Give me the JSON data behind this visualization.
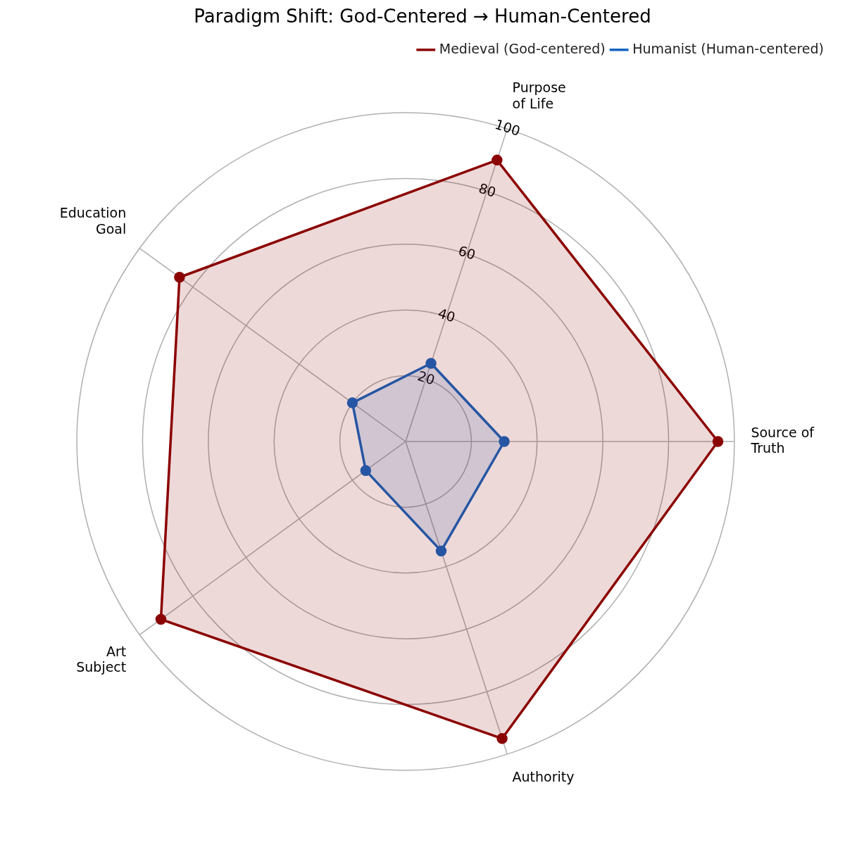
{
  "chart_data": {
    "type": "radar",
    "title": "Paradigm Shift: God-Centered → Human-Centered",
    "categories": [
      "Purpose\nof Life",
      "Source of\nTruth",
      "Authority",
      "Art\nSubject",
      "Education\nGoal"
    ],
    "series": [
      {
        "name": "Medieval (God-centered)",
        "color": "#8b0000",
        "values": [
          90,
          95,
          95,
          92,
          85
        ]
      },
      {
        "name": "Humanist (Human-centered)",
        "color": "#1565c0",
        "values": [
          25,
          30,
          35,
          15,
          20
        ]
      }
    ],
    "ylim": [
      0,
      100
    ],
    "yticks": [
      20,
      40,
      60,
      80,
      100
    ],
    "grid": true,
    "legend": "top right",
    "marker": "circle",
    "line_style": "solid"
  }
}
